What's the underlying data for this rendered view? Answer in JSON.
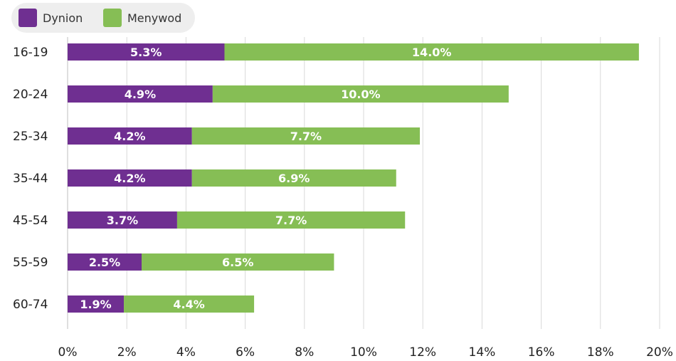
{
  "colors": {
    "dynion": "#6f2f91",
    "menywod": "#86be55"
  },
  "legend": [
    {
      "label": "Dynion",
      "color": "#6f2f91"
    },
    {
      "label": "Menywod",
      "color": "#86be55"
    }
  ],
  "chart_data": {
    "type": "bar",
    "orientation": "horizontal",
    "stacked": true,
    "categories": [
      "16-19",
      "20-24",
      "25-34",
      "35-44",
      "45-54",
      "55-59",
      "60-74"
    ],
    "series": [
      {
        "name": "Dynion",
        "values": [
          5.3,
          4.9,
          4.2,
          4.2,
          3.7,
          2.5,
          1.9
        ],
        "labels": [
          "5.3%",
          "4.9%",
          "4.2%",
          "4.2%",
          "3.7%",
          "2.5%",
          "1.9%"
        ]
      },
      {
        "name": "Menywod",
        "values": [
          14.0,
          10.0,
          7.7,
          6.9,
          7.7,
          6.5,
          4.4
        ],
        "labels": [
          "14.0%",
          "10.0%",
          "7.7%",
          "6.9%",
          "7.7%",
          "6.5%",
          "4.4%"
        ]
      }
    ],
    "xlim": [
      0,
      20
    ],
    "xticks": [
      "0%",
      "2%",
      "4%",
      "6%",
      "8%",
      "10%",
      "12%",
      "14%",
      "16%",
      "18%",
      "20%"
    ],
    "grid": true,
    "legend_position": "top-left"
  }
}
